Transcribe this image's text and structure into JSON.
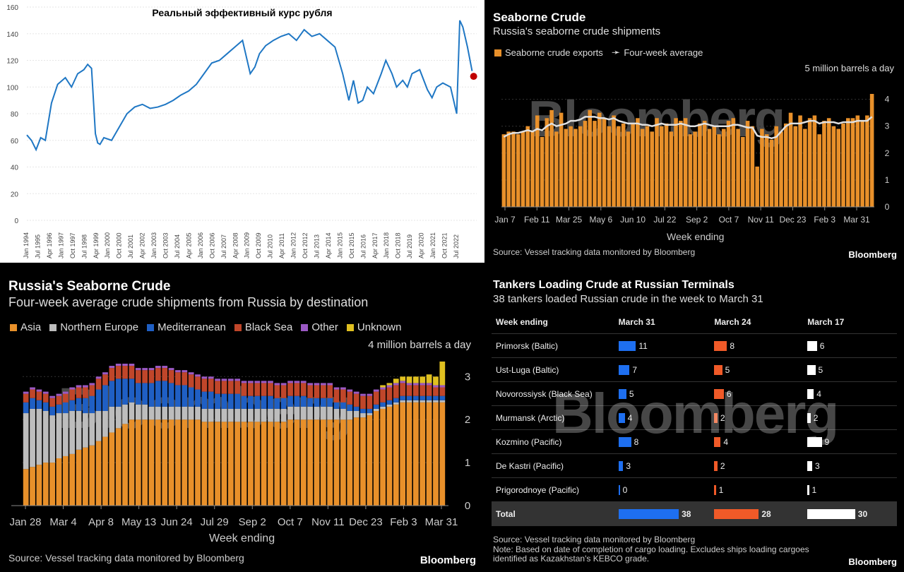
{
  "panel1": {
    "chart_data": {
      "type": "line",
      "title": "Реальный эффективный курс рубля",
      "ylim": [
        0,
        160
      ],
      "yticks": [
        0,
        20,
        40,
        60,
        80,
        100,
        120,
        140,
        160
      ],
      "xticks": [
        "Jan 1994",
        "Jul 1995",
        "Apr 1996",
        "Jan 1997",
        "Oct 1997",
        "Jul 1998",
        "Apr 1999",
        "Jan 2000",
        "Oct 2000",
        "Jul 2001",
        "Apr 2002",
        "Jan 2003",
        "Oct 2003",
        "Jul 2004",
        "Apr 2005",
        "Jan 2006",
        "Oct 2006",
        "Jul 2007",
        "Apr 2008",
        "Jan 2009",
        "Oct 2009",
        "Jul 2010",
        "Apr 2011",
        "Jan 2012",
        "Oct 2012",
        "Jul 2013",
        "Apr 2014",
        "Jan 2015",
        "Oct 2015",
        "Jul 2016",
        "Apr 2017",
        "Jan 2018",
        "Oct 2018",
        "Jul 2019",
        "Apr 2020",
        "Jan 2021",
        "Oct 2021",
        "Jul 2022"
      ],
      "series": [
        {
          "x": [
            1994.0,
            1994.3,
            1994.6,
            1994.9,
            1995.2,
            1995.6,
            1996.0,
            1996.5,
            1996.9,
            1997.3,
            1997.7,
            1997.95,
            1998.2,
            1998.45,
            1998.6,
            1998.75,
            1999.0,
            1999.5,
            2000.0,
            2000.5,
            2001.0,
            2001.5,
            2002.0,
            2002.5,
            2003.0,
            2003.5,
            2004.0,
            2004.5,
            2005.0,
            2005.5,
            2006.0,
            2006.5,
            2007.0,
            2007.5,
            2008.0,
            2008.5,
            2008.8,
            2009.1,
            2009.5,
            2010.0,
            2010.5,
            2011.0,
            2011.5,
            2012.0,
            2012.5,
            2013.0,
            2013.5,
            2014.0,
            2014.5,
            2014.9,
            2015.2,
            2015.5,
            2015.8,
            2016.1,
            2016.5,
            2017.0,
            2017.3,
            2017.7,
            2018.0,
            2018.4,
            2018.7,
            2019.0,
            2019.5,
            2020.0,
            2020.3,
            2020.6,
            2021.0,
            2021.5,
            2021.9,
            2022.1,
            2022.3,
            2022.6,
            2022.9
          ],
          "y": [
            64,
            60,
            53,
            62,
            60,
            88,
            102,
            107,
            100,
            110,
            113,
            117,
            114,
            65,
            58,
            57,
            62,
            60,
            70,
            80,
            85,
            87,
            84,
            85,
            87,
            90,
            94,
            97,
            102,
            110,
            118,
            120,
            125,
            130,
            135,
            110,
            115,
            125,
            131,
            135,
            138,
            140,
            135,
            143,
            138,
            140,
            135,
            130,
            110,
            90,
            105,
            88,
            90,
            100,
            95,
            110,
            120,
            110,
            100,
            105,
            100,
            110,
            113,
            98,
            92,
            100,
            103,
            100,
            80,
            150,
            145,
            130,
            112
          ]
        }
      ],
      "marker": {
        "x": 2023.0,
        "y": 108,
        "color": "#c00000"
      },
      "line_color": "#1f77c4"
    }
  },
  "panel2": {
    "title": "Seaborne Crude",
    "subtitle": "Russia's seaborne crude shipments",
    "legend": [
      "Seaborne crude exports",
      "Four-week average"
    ],
    "unit": "5 million barrels a day",
    "xlabel": "Week ending",
    "source": "Source: Vessel tracking data monitored by Bloomberg",
    "brand": "Bloomberg",
    "watermark": "Bloomberg",
    "chart_data": {
      "type": "bar",
      "ylim": [
        0,
        4.2
      ],
      "yticks": [
        0,
        1,
        2,
        3,
        4
      ],
      "xticks": [
        "Jan 7",
        "Feb 11",
        "Mar 25",
        "May 6",
        "Jun 10",
        "Jul 22",
        "Sep 2",
        "Oct 7",
        "Nov 11",
        "Dec 23",
        "Feb 3",
        "Mar 31"
      ],
      "bar_color": "#e8902a",
      "line_color": "#e0e0e0",
      "values": [
        2.7,
        2.8,
        2.8,
        2.7,
        2.8,
        3.0,
        2.8,
        3.4,
        2.6,
        3.3,
        3.6,
        2.8,
        3.5,
        2.9,
        3.0,
        2.9,
        3.0,
        3.2,
        3.6,
        3.2,
        3.5,
        3.3,
        3.0,
        3.4,
        3.0,
        3.1,
        2.8,
        3.1,
        3.3,
        2.9,
        3.0,
        2.8,
        3.3,
        3.0,
        3.1,
        2.8,
        3.3,
        3.2,
        3.3,
        2.7,
        2.8,
        3.1,
        3.2,
        2.9,
        3.0,
        2.7,
        2.9,
        3.2,
        3.3,
        2.9,
        2.6,
        3.2,
        3.0,
        1.5,
        2.9,
        2.7,
        2.5,
        3.0,
        2.8,
        3.1,
        3.5,
        3.0,
        3.4,
        2.9,
        3.3,
        3.4,
        2.7,
        3.2,
        3.3,
        3.0,
        2.9,
        3.1,
        3.3,
        3.3,
        3.4,
        3.2,
        3.4,
        4.2
      ],
      "average": [
        2.6,
        2.7,
        2.75,
        2.75,
        2.8,
        2.85,
        2.8,
        2.9,
        2.85,
        3.0,
        3.1,
        3.0,
        3.05,
        3.1,
        3.2,
        3.2,
        3.25,
        3.35,
        3.35,
        3.35,
        3.3,
        3.3,
        3.25,
        3.3,
        3.2,
        3.15,
        3.1,
        3.1,
        3.1,
        3.05,
        3.05,
        3.0,
        3.05,
        3.1,
        3.05,
        3.05,
        3.05,
        3.1,
        3.05,
        3.0,
        3.0,
        3.05,
        3.1,
        3.05,
        3.0,
        3.0,
        3.0,
        3.0,
        3.05,
        3.05,
        3.0,
        2.95,
        2.95,
        2.65,
        2.6,
        2.6,
        2.55,
        2.6,
        2.8,
        3.0,
        3.1,
        3.1,
        3.1,
        3.15,
        3.2,
        3.2,
        3.1,
        3.15,
        3.15,
        3.15,
        3.1,
        3.15,
        3.15,
        3.15,
        3.2,
        3.2,
        3.2,
        3.35
      ]
    }
  },
  "panel3": {
    "title": "Russia's Seaborne Crude",
    "subtitle": "Four-week average crude shipments from Russia by destination",
    "legend": [
      {
        "name": "Asia",
        "color": "#e8902a"
      },
      {
        "name": "Northern Europe",
        "color": "#bdbdbd"
      },
      {
        "name": "Mediterranean",
        "color": "#1f5fc4"
      },
      {
        "name": "Black Sea",
        "color": "#c0462a"
      },
      {
        "name": "Other",
        "color": "#9b59c4"
      },
      {
        "name": "Unknown",
        "color": "#e0c020"
      }
    ],
    "unit": "4 million barrels a day",
    "xlabel": "Week ending",
    "source": "Source: Vessel tracking data monitored by Bloomberg",
    "brand": "Bloomberg",
    "watermark": "Bloomberg",
    "chart_data": {
      "type": "bar",
      "stacked": true,
      "ylim": [
        0,
        3.3
      ],
      "yticks": [
        0,
        1,
        2,
        3
      ],
      "xticks": [
        "Jan 28",
        "Mar 4",
        "Apr 8",
        "May 13",
        "Jun 24",
        "Jul 29",
        "Sep 2",
        "Oct 7",
        "Nov 11",
        "Dec 23",
        "Feb 3",
        "Mar 31"
      ],
      "series": [
        {
          "name": "Asia",
          "values": [
            0.85,
            0.9,
            0.95,
            1.0,
            1.0,
            1.1,
            1.15,
            1.2,
            1.3,
            1.35,
            1.4,
            1.5,
            1.6,
            1.7,
            1.8,
            1.9,
            2.0,
            2.0,
            2.0,
            2.0,
            2.0,
            2.0,
            2.0,
            2.0,
            2.0,
            2.0,
            2.0,
            1.95,
            1.95,
            1.95,
            1.95,
            1.95,
            1.95,
            1.95,
            1.95,
            1.95,
            1.95,
            1.95,
            1.95,
            1.95,
            2.0,
            2.0,
            2.0,
            2.0,
            2.0,
            2.0,
            2.0,
            2.0,
            2.0,
            2.0,
            2.05,
            2.05,
            2.1,
            2.2,
            2.25,
            2.3,
            2.35,
            2.4,
            2.4,
            2.4,
            2.4,
            2.4,
            2.4,
            2.4
          ]
        },
        {
          "name": "Northern Europe",
          "values": [
            1.3,
            1.35,
            1.3,
            1.2,
            1.1,
            1.05,
            1.0,
            1.0,
            0.9,
            0.8,
            0.75,
            0.7,
            0.6,
            0.6,
            0.5,
            0.45,
            0.4,
            0.35,
            0.35,
            0.3,
            0.3,
            0.3,
            0.3,
            0.3,
            0.3,
            0.3,
            0.3,
            0.3,
            0.3,
            0.3,
            0.3,
            0.3,
            0.3,
            0.3,
            0.3,
            0.3,
            0.3,
            0.3,
            0.3,
            0.3,
            0.3,
            0.3,
            0.3,
            0.3,
            0.3,
            0.3,
            0.3,
            0.25,
            0.25,
            0.2,
            0.15,
            0.1,
            0.05,
            0.05,
            0.05,
            0.05,
            0.05,
            0.05,
            0.05,
            0.05,
            0.05,
            0.05,
            0.05,
            0.05
          ]
        },
        {
          "name": "Mediterranean",
          "values": [
            0.25,
            0.25,
            0.2,
            0.2,
            0.2,
            0.2,
            0.25,
            0.25,
            0.3,
            0.35,
            0.4,
            0.5,
            0.6,
            0.6,
            0.65,
            0.6,
            0.55,
            0.5,
            0.5,
            0.55,
            0.6,
            0.6,
            0.55,
            0.5,
            0.5,
            0.45,
            0.4,
            0.4,
            0.4,
            0.35,
            0.35,
            0.35,
            0.35,
            0.3,
            0.3,
            0.3,
            0.3,
            0.3,
            0.25,
            0.25,
            0.25,
            0.25,
            0.25,
            0.2,
            0.2,
            0.2,
            0.2,
            0.15,
            0.15,
            0.15,
            0.1,
            0.1,
            0.1,
            0.1,
            0.1,
            0.1,
            0.1,
            0.1,
            0.1,
            0.1,
            0.1,
            0.1,
            0.1,
            0.1
          ]
        },
        {
          "name": "Black Sea",
          "values": [
            0.2,
            0.2,
            0.2,
            0.2,
            0.2,
            0.2,
            0.2,
            0.25,
            0.25,
            0.25,
            0.25,
            0.25,
            0.25,
            0.3,
            0.3,
            0.3,
            0.3,
            0.3,
            0.3,
            0.3,
            0.3,
            0.3,
            0.3,
            0.3,
            0.3,
            0.3,
            0.3,
            0.3,
            0.3,
            0.3,
            0.3,
            0.3,
            0.3,
            0.3,
            0.3,
            0.3,
            0.3,
            0.3,
            0.3,
            0.3,
            0.3,
            0.3,
            0.3,
            0.3,
            0.3,
            0.3,
            0.3,
            0.3,
            0.3,
            0.3,
            0.3,
            0.3,
            0.3,
            0.3,
            0.3,
            0.3,
            0.3,
            0.3,
            0.25,
            0.25,
            0.25,
            0.25,
            0.2,
            0.2
          ]
        },
        {
          "name": "Other",
          "values": [
            0.05,
            0.05,
            0.05,
            0.05,
            0.05,
            0.05,
            0.05,
            0.05,
            0.05,
            0.05,
            0.05,
            0.05,
            0.05,
            0.05,
            0.05,
            0.05,
            0.05,
            0.05,
            0.05,
            0.05,
            0.05,
            0.05,
            0.05,
            0.05,
            0.05,
            0.05,
            0.05,
            0.05,
            0.05,
            0.05,
            0.05,
            0.05,
            0.05,
            0.05,
            0.05,
            0.05,
            0.05,
            0.05,
            0.05,
            0.05,
            0.05,
            0.05,
            0.05,
            0.05,
            0.05,
            0.05,
            0.05,
            0.05,
            0.05,
            0.05,
            0.05,
            0.05,
            0.05,
            0.05,
            0.05,
            0.05,
            0.05,
            0.05,
            0.05,
            0.05,
            0.05,
            0.05,
            0.05,
            0.05
          ]
        },
        {
          "name": "Unknown",
          "values": [
            0,
            0,
            0,
            0,
            0,
            0,
            0,
            0,
            0,
            0,
            0,
            0,
            0,
            0,
            0,
            0,
            0,
            0,
            0,
            0,
            0,
            0,
            0,
            0,
            0,
            0,
            0,
            0,
            0,
            0,
            0,
            0,
            0,
            0,
            0,
            0,
            0,
            0,
            0,
            0,
            0,
            0,
            0,
            0,
            0,
            0,
            0,
            0,
            0,
            0,
            0,
            0,
            0,
            0,
            0.05,
            0.05,
            0.1,
            0.1,
            0.15,
            0.15,
            0.15,
            0.2,
            0.2,
            0.55
          ]
        }
      ]
    }
  },
  "panel4": {
    "title": "Tankers Loading Crude at Russian Terminals",
    "subtitle": "38 tankers loaded Russian crude in the week to March 31",
    "watermark": "Bloomberg",
    "chart_data": {
      "type": "table",
      "columns": [
        "Week ending",
        "March 31",
        "March 24",
        "March 17"
      ],
      "column_colors": [
        "#1e6ff0",
        "#f05a28",
        "#ffffff"
      ],
      "rows": [
        {
          "label": "Primorsk (Baltic)",
          "values": [
            11,
            8,
            6
          ]
        },
        {
          "label": "Ust-Luga (Baltic)",
          "values": [
            7,
            5,
            5
          ]
        },
        {
          "label": "Novorossiysk (Black Sea)",
          "values": [
            5,
            6,
            4
          ]
        },
        {
          "label": "Murmansk (Arctic)",
          "values": [
            4,
            2,
            2
          ]
        },
        {
          "label": "Kozmino (Pacific)",
          "values": [
            8,
            4,
            9
          ]
        },
        {
          "label": "De Kastri (Pacific)",
          "values": [
            3,
            2,
            3
          ]
        },
        {
          "label": "Prigorodnoye (Pacific)",
          "values": [
            0,
            1,
            1
          ]
        }
      ],
      "total": {
        "label": "Total",
        "values": [
          38,
          28,
          30
        ]
      }
    },
    "source": "Source: Vessel tracking data monitored by Bloomberg",
    "note": "Note: Based on date of completion of cargo loading. Excludes ships loading cargoes identified as Kazakhstan's KEBCO grade.",
    "brand": "Bloomberg"
  }
}
